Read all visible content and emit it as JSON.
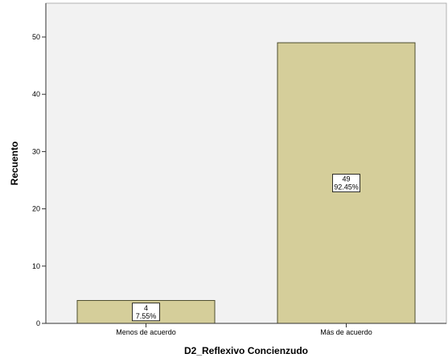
{
  "chart_data": {
    "type": "bar",
    "title": "",
    "xlabel": "D2_Reflexivo Concienzudo",
    "ylabel": "Recuento",
    "categories": [
      "Menos de acuerdo",
      "Más de acuerdo"
    ],
    "values": [
      4,
      49
    ],
    "percent_labels": [
      "7.55%",
      "92.45%"
    ],
    "ylim": [
      0,
      55
    ],
    "yticks": [
      0,
      10,
      20,
      30,
      40,
      50
    ],
    "grid": false,
    "legend": "none",
    "colors": {
      "bar_fill": "#d5ce9a",
      "bar_stroke": "#4d4d2e",
      "plot_background": "#f2f2f2",
      "axis": "#333333"
    }
  }
}
